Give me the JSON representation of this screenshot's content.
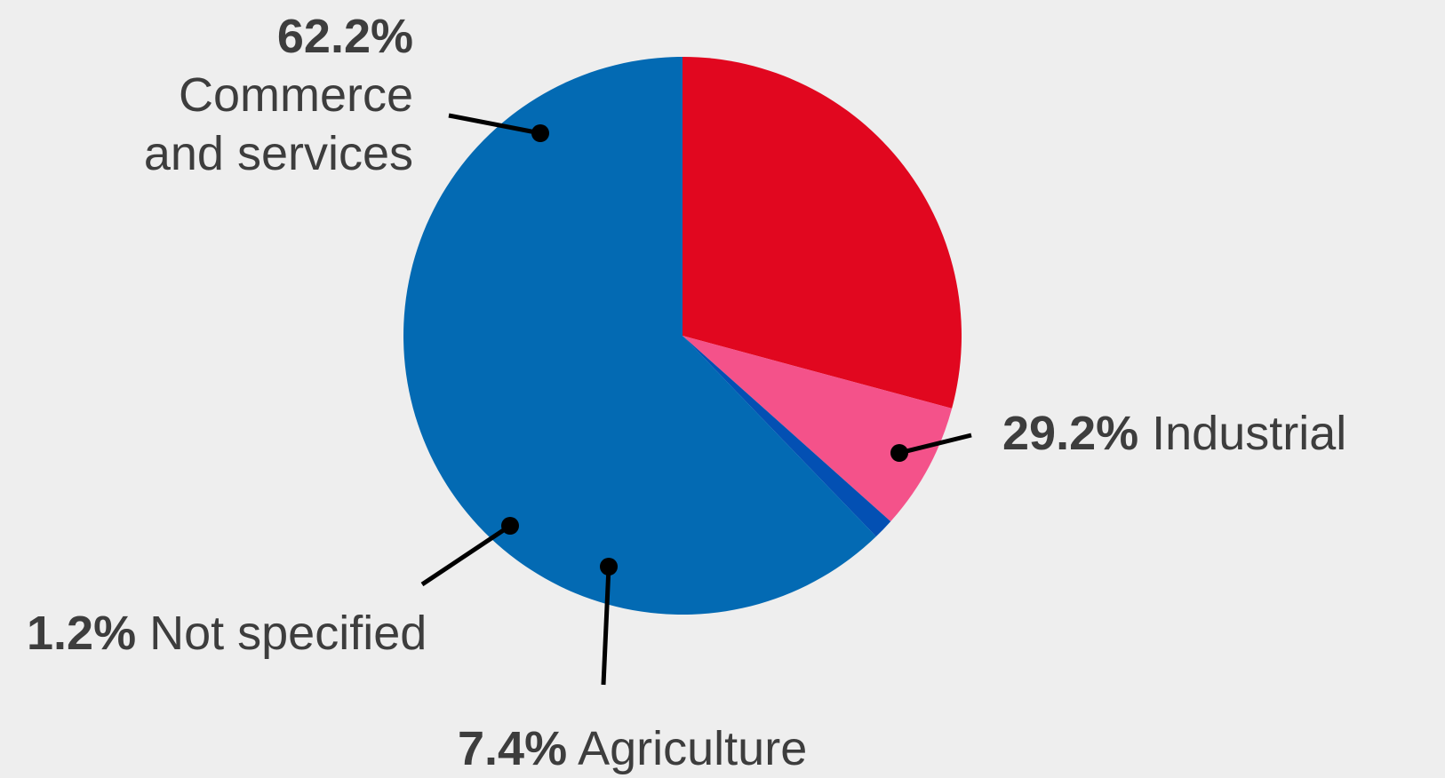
{
  "chart_data": {
    "type": "pie",
    "slices": [
      {
        "key": "commerce",
        "label": "Commerce and services",
        "label_lines": [
          "Commerce",
          "and services"
        ],
        "pct_text": "62.2%",
        "value": 62.2,
        "color": "#036ab3"
      },
      {
        "key": "industrial",
        "label": "Industrial",
        "pct_text": "29.2%",
        "value": 29.2,
        "color": "#e1071f"
      },
      {
        "key": "agriculture",
        "label": "Agriculture",
        "pct_text": "7.4%",
        "value": 7.4,
        "color": "#f4528a"
      },
      {
        "key": "not-specified",
        "label": "Not specified",
        "pct_text": "1.2%",
        "value": 1.2,
        "color": "#0350b3"
      }
    ],
    "leader_line_color": "#000000",
    "label_text_color": "#3d3d3d"
  }
}
